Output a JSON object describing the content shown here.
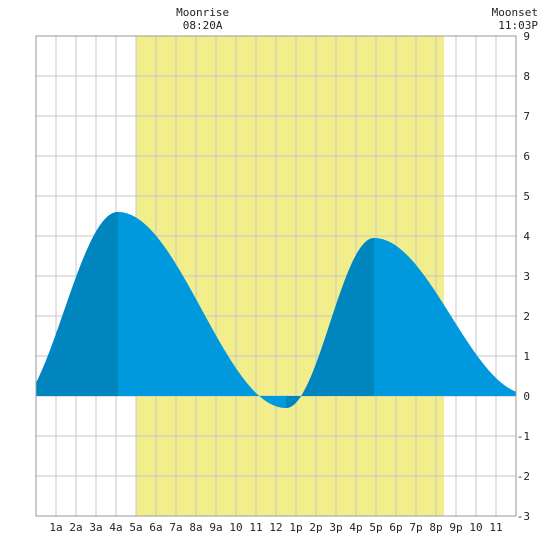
{
  "chart_data": {
    "type": "area",
    "title": "",
    "xlabel": "",
    "ylabel": "",
    "xlim": [
      0,
      24
    ],
    "ylim": [
      -3,
      9
    ],
    "grid": true,
    "y_ticks": [
      -3,
      -2,
      -1,
      0,
      1,
      2,
      3,
      4,
      5,
      6,
      7,
      8,
      9
    ],
    "x_ticks": [
      {
        "h": 1,
        "label": "1a"
      },
      {
        "h": 2,
        "label": "2a"
      },
      {
        "h": 3,
        "label": "3a"
      },
      {
        "h": 4,
        "label": "4a"
      },
      {
        "h": 5,
        "label": "5a"
      },
      {
        "h": 6,
        "label": "6a"
      },
      {
        "h": 7,
        "label": "7a"
      },
      {
        "h": 8,
        "label": "8a"
      },
      {
        "h": 9,
        "label": "9a"
      },
      {
        "h": 10,
        "label": "10"
      },
      {
        "h": 11,
        "label": "11"
      },
      {
        "h": 12,
        "label": "12"
      },
      {
        "h": 13,
        "label": "1p"
      },
      {
        "h": 14,
        "label": "2p"
      },
      {
        "h": 15,
        "label": "3p"
      },
      {
        "h": 16,
        "label": "4p"
      },
      {
        "h": 17,
        "label": "5p"
      },
      {
        "h": 18,
        "label": "6p"
      },
      {
        "h": 19,
        "label": "7p"
      },
      {
        "h": 20,
        "label": "8p"
      },
      {
        "h": 21,
        "label": "9p"
      },
      {
        "h": 22,
        "label": "10"
      },
      {
        "h": 23,
        "label": "11"
      }
    ],
    "tide_extrema": [
      {
        "h": -1.3,
        "v": -0.35
      },
      {
        "h": 4.1,
        "v": 4.6
      },
      {
        "h": 12.5,
        "v": -0.3
      },
      {
        "h": 16.9,
        "v": 3.95
      },
      {
        "h": 24.6,
        "v": 0.05
      }
    ],
    "daylight_shading": {
      "start": 5.0,
      "end": 20.4
    },
    "moonrise": {
      "label": "Moonrise",
      "time": "08:20A",
      "h": 8.33
    },
    "moonset": {
      "label": "Moonset",
      "time": "11:03P",
      "h": 23.05
    },
    "colors": {
      "water": "#0099dd",
      "water_dark": "#0085bf",
      "daylight": "#f2ee8c",
      "grid": "#c8c8c8",
      "frame": "#999999",
      "text": "#222222"
    }
  }
}
